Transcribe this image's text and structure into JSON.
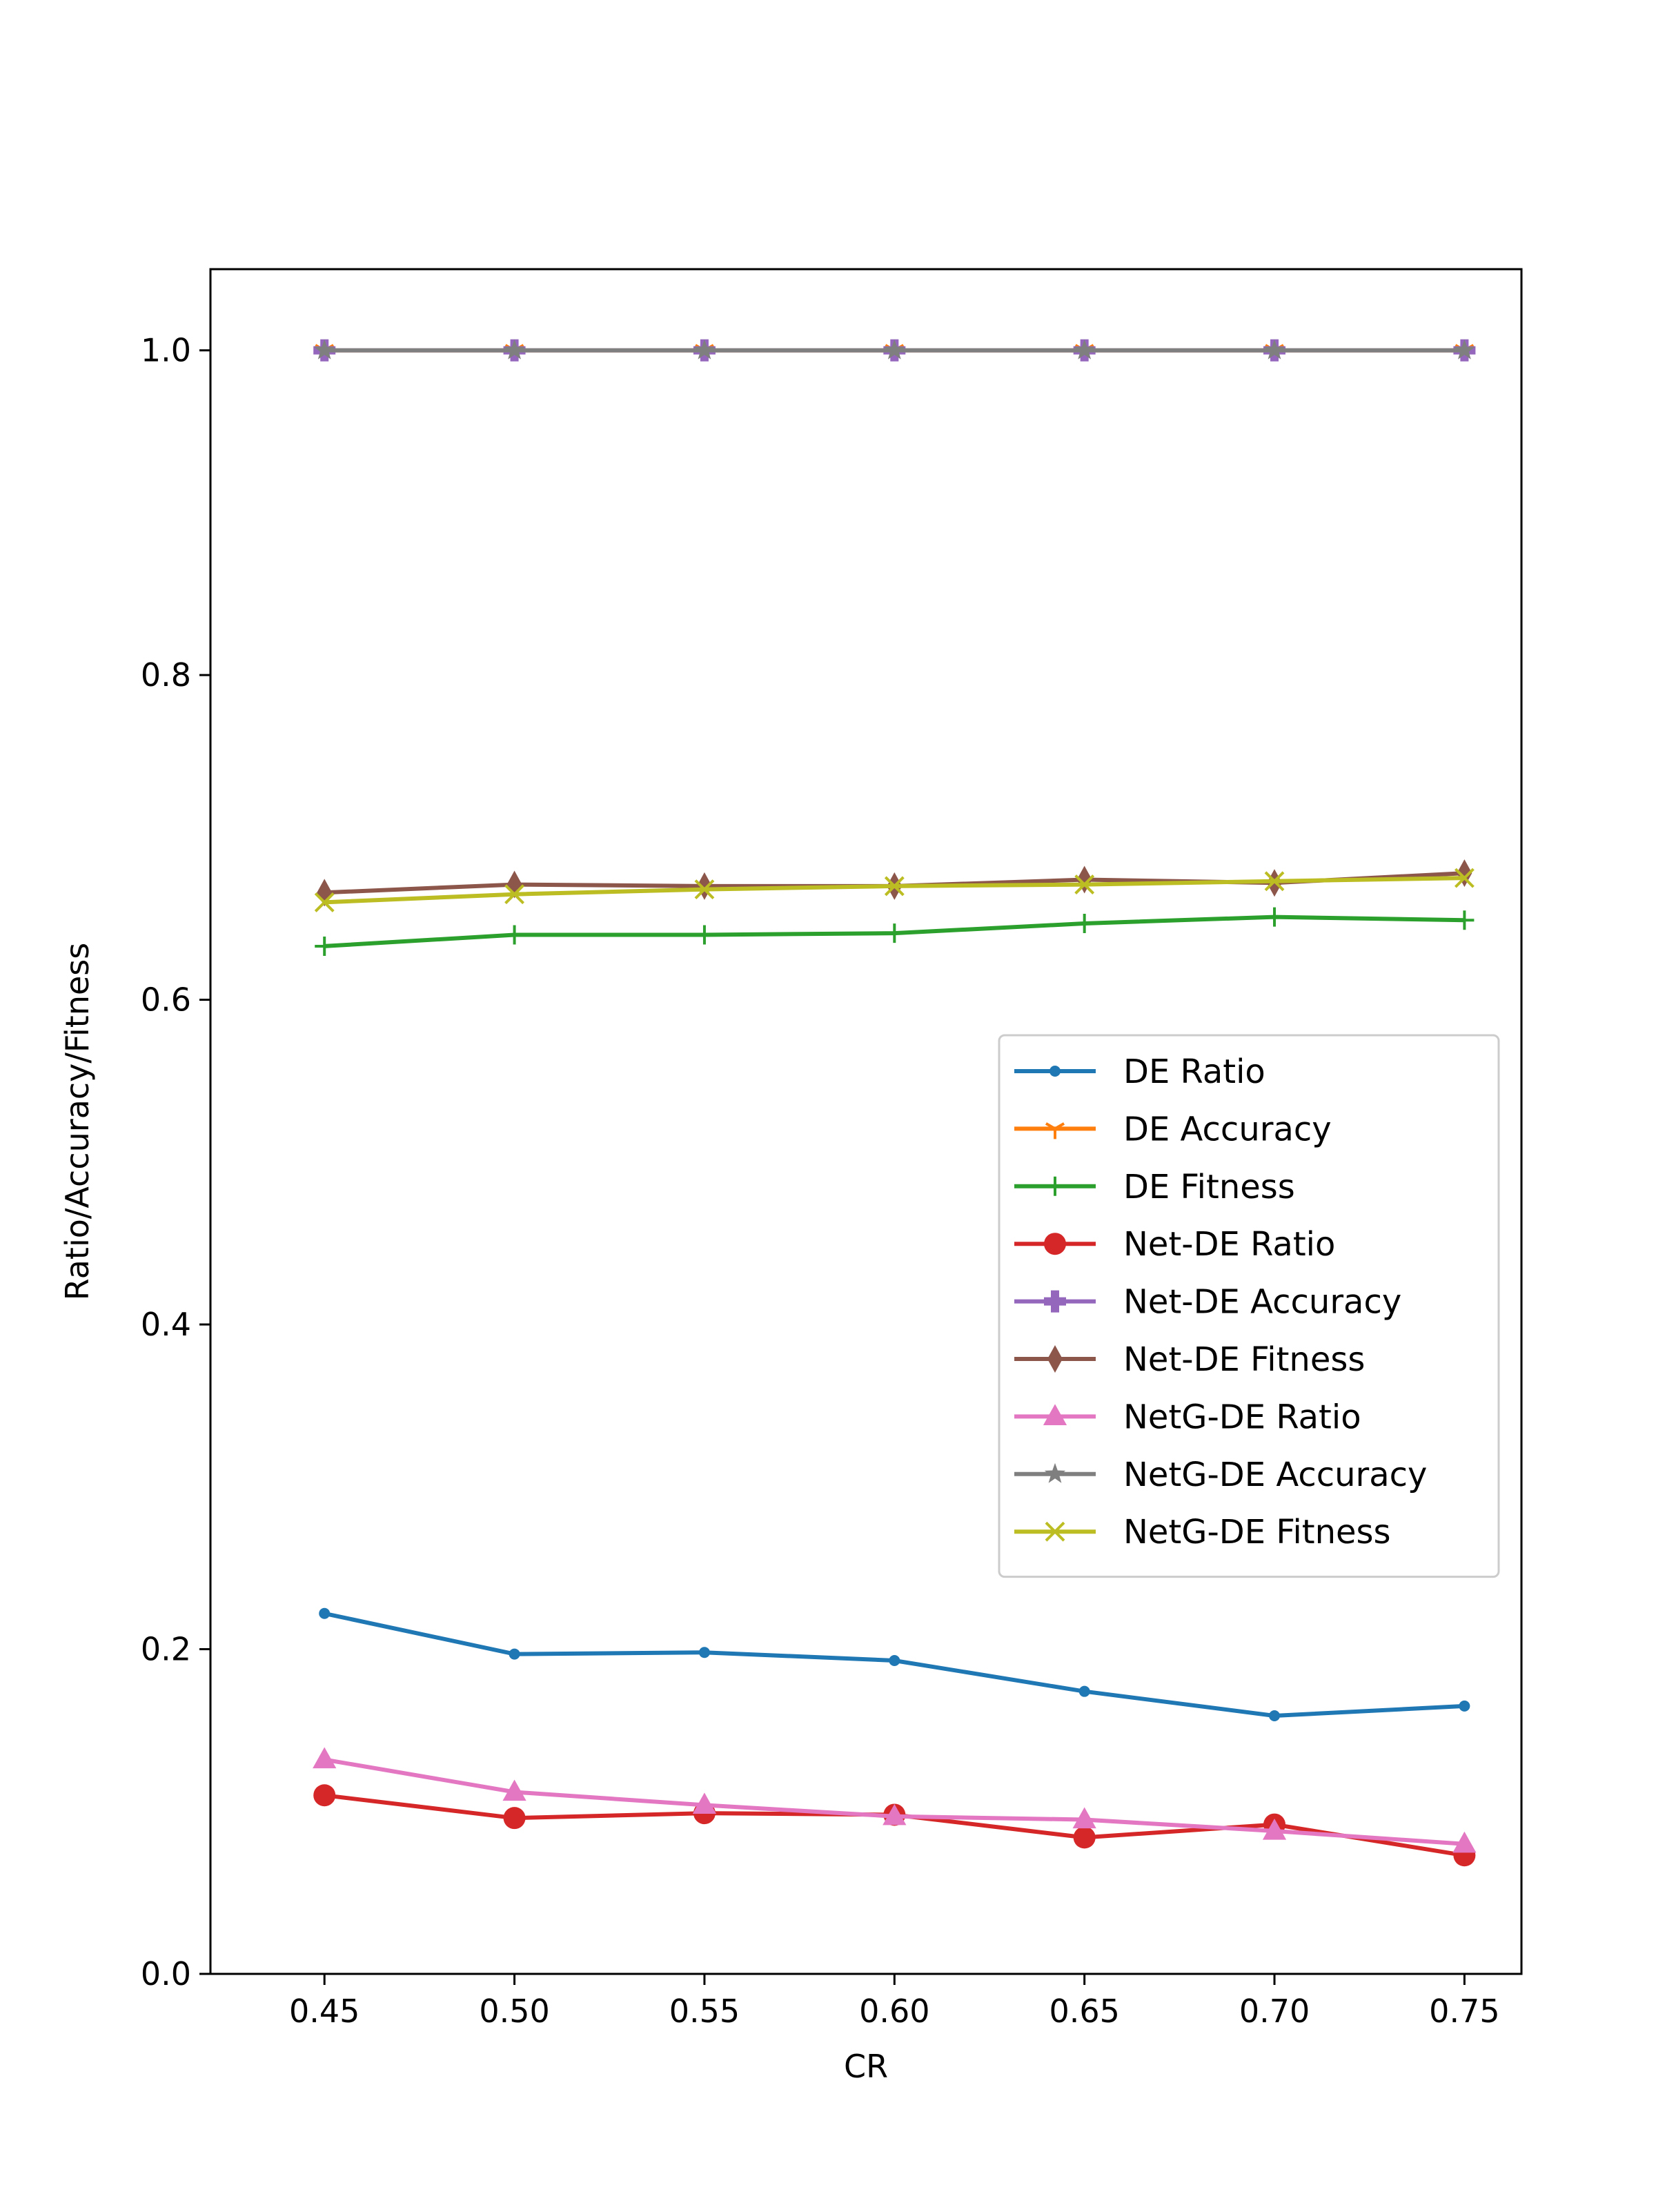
{
  "chart_data": {
    "type": "line",
    "title": "",
    "xlabel": "CR",
    "ylabel": "Ratio/Accuracy/Fitness",
    "x": [
      0.45,
      0.5,
      0.55,
      0.6,
      0.65,
      0.7,
      0.75
    ],
    "x_tick_labels": [
      "0.45",
      "0.50",
      "0.55",
      "0.60",
      "0.65",
      "0.70",
      "0.75"
    ],
    "y_ticks": [
      0.0,
      0.2,
      0.4,
      0.6,
      0.8,
      1.0
    ],
    "y_tick_labels": [
      "0.0",
      "0.2",
      "0.4",
      "0.6",
      "0.8",
      "1.0"
    ],
    "xlim": [
      0.42,
      0.765
    ],
    "ylim": [
      0.0,
      1.05
    ],
    "grid": false,
    "legend_position": "center-right",
    "series": [
      {
        "name": "DE Ratio",
        "color": "#1f77b4",
        "marker": "point",
        "values": [
          0.222,
          0.197,
          0.198,
          0.193,
          0.174,
          0.159,
          0.165
        ]
      },
      {
        "name": "DE Accuracy",
        "color": "#ff7f0e",
        "marker": "tri-down",
        "values": [
          1.0,
          1.0,
          1.0,
          1.0,
          1.0,
          1.0,
          1.0
        ]
      },
      {
        "name": "DE Fitness",
        "color": "#2ca02c",
        "marker": "plus",
        "values": [
          0.633,
          0.64,
          0.64,
          0.641,
          0.647,
          0.651,
          0.649
        ]
      },
      {
        "name": "Net-DE Ratio",
        "color": "#d62728",
        "marker": "circle",
        "values": [
          0.11,
          0.096,
          0.099,
          0.098,
          0.084,
          0.092,
          0.073
        ]
      },
      {
        "name": "Net-DE Accuracy",
        "color": "#9467bd",
        "marker": "plus-filled",
        "values": [
          1.0,
          1.0,
          1.0,
          1.0,
          1.0,
          1.0,
          1.0
        ]
      },
      {
        "name": "Net-DE Fitness",
        "color": "#8c564b",
        "marker": "thin-diamond",
        "values": [
          0.666,
          0.671,
          0.67,
          0.67,
          0.674,
          0.672,
          0.678
        ]
      },
      {
        "name": "NetG-DE Ratio",
        "color": "#e377c2",
        "marker": "triangle-up",
        "values": [
          0.132,
          0.112,
          0.104,
          0.097,
          0.095,
          0.088,
          0.08
        ]
      },
      {
        "name": "NetG-DE Accuracy",
        "color": "#7f7f7f",
        "marker": "star",
        "values": [
          1.0,
          1.0,
          1.0,
          1.0,
          1.0,
          1.0,
          1.0
        ]
      },
      {
        "name": "NetG-DE Fitness",
        "color": "#bcbd22",
        "marker": "x",
        "values": [
          0.66,
          0.665,
          0.668,
          0.67,
          0.671,
          0.673,
          0.675
        ]
      }
    ]
  }
}
